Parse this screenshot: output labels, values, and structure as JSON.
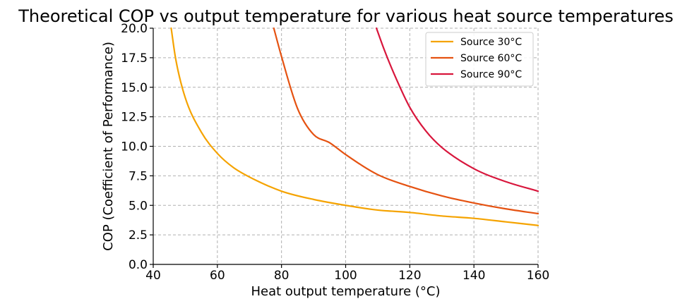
{
  "chart_data": {
    "type": "line",
    "title": "Theoretical COP vs output temperature for various heat source temperatures",
    "xlabel": "Heat output temperature (°C)",
    "ylabel": "COP (Coefficient of Performance)",
    "xlim": [
      40,
      160
    ],
    "ylim": [
      0,
      20
    ],
    "xticks": [
      40,
      60,
      80,
      100,
      120,
      140,
      160
    ],
    "yticks": [
      0.0,
      2.5,
      5.0,
      7.5,
      10.0,
      12.5,
      15.0,
      17.5,
      20.0
    ],
    "xtick_labels": [
      "40",
      "60",
      "80",
      "100",
      "120",
      "140",
      "160"
    ],
    "ytick_labels": [
      "0.0",
      "2.5",
      "5.0",
      "7.5",
      "10.0",
      "12.5",
      "15.0",
      "17.5",
      "20.0"
    ],
    "grid": true,
    "legend_position": "top-right",
    "series": [
      {
        "name": "Source 30°C",
        "color": "#f5a300",
        "x": [
          45.6,
          47,
          50,
          55,
          60,
          65,
          70,
          80,
          90,
          100,
          110,
          120,
          130,
          140,
          150,
          160
        ],
        "y": [
          20.0,
          17.4,
          14.1,
          11.2,
          9.4,
          8.2,
          7.4,
          6.2,
          5.5,
          5.0,
          4.6,
          4.4,
          4.1,
          3.9,
          3.6,
          3.3
        ]
      },
      {
        "name": "Source 60°C",
        "color": "#e55211",
        "x": [
          77.6,
          80,
          85,
          90,
          95,
          100,
          110,
          120,
          130,
          140,
          150,
          160
        ],
        "y": [
          20.0,
          17.6,
          13.2,
          11.0,
          10.3,
          9.3,
          7.6,
          6.6,
          5.8,
          5.2,
          4.7,
          4.3
        ]
      },
      {
        "name": "Source 90°C",
        "color": "#d8163c",
        "x": [
          109.6,
          112,
          115,
          120,
          125,
          130,
          140,
          150,
          160
        ],
        "y": [
          20.0,
          18.2,
          16.2,
          13.3,
          11.3,
          9.9,
          8.1,
          7.0,
          6.2
        ]
      }
    ]
  }
}
